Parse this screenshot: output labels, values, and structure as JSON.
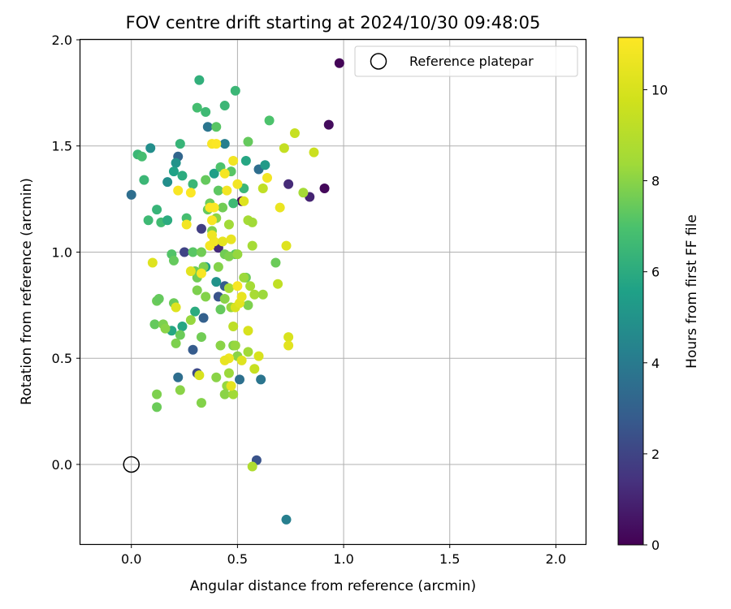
{
  "chart_data": {
    "type": "scatter",
    "title": "FOV centre drift starting at 2024/10/30 09:48:05",
    "xlabel": "Angular distance from reference (arcmin)",
    "ylabel": "Rotation from reference (arcmin)",
    "xlim": [
      -0.24,
      2.14
    ],
    "ylim": [
      -0.375,
      2.0
    ],
    "xticks": [
      0.0,
      0.5,
      1.0,
      1.5,
      2.0
    ],
    "yticks": [
      0.0,
      0.5,
      1.0,
      1.5,
      2.0
    ],
    "xtick_labels": [
      "0.0",
      "0.5",
      "1.0",
      "1.5",
      "2.0"
    ],
    "ytick_labels": [
      "0.0",
      "0.5",
      "1.0",
      "1.5",
      "2.0"
    ],
    "grid": true,
    "legend": {
      "placement": "top-right",
      "entries": [
        "Reference platepar"
      ]
    },
    "reference_point": {
      "label": "Reference platepar",
      "x": 0.0,
      "y": 0.0,
      "marker": "open-circle"
    },
    "colorbar": {
      "label": "Hours from first FF file",
      "colormap": "viridis",
      "range": [
        0,
        11.15
      ],
      "ticks": [
        0,
        2,
        4,
        6,
        8,
        10
      ],
      "tick_labels": [
        "0",
        "2",
        "4",
        "6",
        "8",
        "10"
      ]
    },
    "points": [
      {
        "x": 0.98,
        "y": 1.89,
        "c": 0.1
      },
      {
        "x": 0.93,
        "y": 1.6,
        "c": 0.3
      },
      {
        "x": 0.91,
        "y": 1.3,
        "c": 0.2
      },
      {
        "x": 0.84,
        "y": 1.26,
        "c": 1.0
      },
      {
        "x": 0.74,
        "y": 1.32,
        "c": 1.2
      },
      {
        "x": 0.6,
        "y": 1.39,
        "c": 3.5
      },
      {
        "x": 0.52,
        "y": 1.24,
        "c": 0.2
      },
      {
        "x": 0.41,
        "y": 1.02,
        "c": 1.2
      },
      {
        "x": 0.33,
        "y": 1.11,
        "c": 1.8
      },
      {
        "x": 0.25,
        "y": 1.0,
        "c": 2.0
      },
      {
        "x": 0.41,
        "y": 0.79,
        "c": 2.5
      },
      {
        "x": 0.44,
        "y": 0.84,
        "c": 2.8
      },
      {
        "x": 0.34,
        "y": 0.69,
        "c": 3.0
      },
      {
        "x": 0.29,
        "y": 0.54,
        "c": 2.8
      },
      {
        "x": 0.31,
        "y": 0.43,
        "c": 2.2
      },
      {
        "x": 0.22,
        "y": 0.41,
        "c": 3.5
      },
      {
        "x": 0.51,
        "y": 0.4,
        "c": 3.6
      },
      {
        "x": 0.61,
        "y": 0.4,
        "c": 3.8
      },
      {
        "x": 0.59,
        "y": 0.02,
        "c": 2.5
      },
      {
        "x": 0.73,
        "y": -0.26,
        "c": 4.2
      },
      {
        "x": 0.0,
        "y": 1.27,
        "c": 3.5
      },
      {
        "x": 0.09,
        "y": 1.49,
        "c": 4.8
      },
      {
        "x": 0.22,
        "y": 1.45,
        "c": 3.2
      },
      {
        "x": 0.36,
        "y": 1.59,
        "c": 3.8
      },
      {
        "x": 0.44,
        "y": 1.51,
        "c": 4.2
      },
      {
        "x": 0.21,
        "y": 1.42,
        "c": 5.0
      },
      {
        "x": 0.17,
        "y": 1.33,
        "c": 4.8
      },
      {
        "x": 0.2,
        "y": 1.38,
        "c": 5.6
      },
      {
        "x": 0.24,
        "y": 1.36,
        "c": 6.0
      },
      {
        "x": 0.39,
        "y": 1.37,
        "c": 5.5
      },
      {
        "x": 0.54,
        "y": 1.43,
        "c": 5.8
      },
      {
        "x": 0.63,
        "y": 1.41,
        "c": 5.3
      },
      {
        "x": 0.4,
        "y": 0.86,
        "c": 5.0
      },
      {
        "x": 0.35,
        "y": 0.93,
        "c": 5.5
      },
      {
        "x": 0.19,
        "y": 0.63,
        "c": 5.8
      },
      {
        "x": 0.24,
        "y": 0.65,
        "c": 5.8
      },
      {
        "x": 0.3,
        "y": 0.72,
        "c": 6.0
      },
      {
        "x": 0.03,
        "y": 1.46,
        "c": 6.5
      },
      {
        "x": 0.05,
        "y": 1.45,
        "c": 6.8
      },
      {
        "x": 0.06,
        "y": 1.34,
        "c": 6.5
      },
      {
        "x": 0.08,
        "y": 1.15,
        "c": 6.6
      },
      {
        "x": 0.12,
        "y": 1.2,
        "c": 6.4
      },
      {
        "x": 0.14,
        "y": 1.14,
        "c": 6.7
      },
      {
        "x": 0.17,
        "y": 1.15,
        "c": 6.0
      },
      {
        "x": 0.23,
        "y": 1.51,
        "c": 6.4
      },
      {
        "x": 0.29,
        "y": 1.32,
        "c": 6.5
      },
      {
        "x": 0.26,
        "y": 1.16,
        "c": 6.8
      },
      {
        "x": 0.31,
        "y": 1.68,
        "c": 6.8
      },
      {
        "x": 0.32,
        "y": 1.81,
        "c": 6.2
      },
      {
        "x": 0.35,
        "y": 1.66,
        "c": 6.6
      },
      {
        "x": 0.44,
        "y": 1.69,
        "c": 6.5
      },
      {
        "x": 0.49,
        "y": 1.76,
        "c": 6.5
      },
      {
        "x": 0.4,
        "y": 1.59,
        "c": 7.2
      },
      {
        "x": 0.42,
        "y": 1.4,
        "c": 7.0
      },
      {
        "x": 0.35,
        "y": 1.34,
        "c": 7.4
      },
      {
        "x": 0.47,
        "y": 1.38,
        "c": 7.2
      },
      {
        "x": 0.48,
        "y": 1.23,
        "c": 6.6
      },
      {
        "x": 0.55,
        "y": 1.52,
        "c": 7.4
      },
      {
        "x": 0.65,
        "y": 1.62,
        "c": 7.0
      },
      {
        "x": 0.41,
        "y": 1.29,
        "c": 7.3
      },
      {
        "x": 0.37,
        "y": 1.23,
        "c": 7.5
      },
      {
        "x": 0.36,
        "y": 1.2,
        "c": 7.4
      },
      {
        "x": 0.43,
        "y": 1.21,
        "c": 7.6
      },
      {
        "x": 0.38,
        "y": 1.1,
        "c": 7.8
      },
      {
        "x": 0.4,
        "y": 1.16,
        "c": 8.0
      },
      {
        "x": 0.53,
        "y": 1.3,
        "c": 6.5
      },
      {
        "x": 0.49,
        "y": 0.99,
        "c": 7.2
      },
      {
        "x": 0.44,
        "y": 0.99,
        "c": 7.6
      },
      {
        "x": 0.46,
        "y": 0.98,
        "c": 7.8
      },
      {
        "x": 0.19,
        "y": 0.99,
        "c": 7.1
      },
      {
        "x": 0.2,
        "y": 0.96,
        "c": 7.4
      },
      {
        "x": 0.29,
        "y": 1.0,
        "c": 7.2
      },
      {
        "x": 0.33,
        "y": 1.0,
        "c": 7.6
      },
      {
        "x": 0.34,
        "y": 0.93,
        "c": 7.8
      },
      {
        "x": 0.3,
        "y": 0.91,
        "c": 7.5
      },
      {
        "x": 0.31,
        "y": 0.88,
        "c": 7.6
      },
      {
        "x": 0.41,
        "y": 0.93,
        "c": 7.9
      },
      {
        "x": 0.54,
        "y": 0.88,
        "c": 7.5
      },
      {
        "x": 0.68,
        "y": 0.95,
        "c": 7.5
      },
      {
        "x": 0.12,
        "y": 0.77,
        "c": 7.5
      },
      {
        "x": 0.13,
        "y": 0.78,
        "c": 7.4
      },
      {
        "x": 0.2,
        "y": 0.76,
        "c": 7.5
      },
      {
        "x": 0.31,
        "y": 0.82,
        "c": 7.8
      },
      {
        "x": 0.35,
        "y": 0.79,
        "c": 7.9
      },
      {
        "x": 0.42,
        "y": 0.73,
        "c": 7.4
      },
      {
        "x": 0.44,
        "y": 0.78,
        "c": 8.0
      },
      {
        "x": 0.55,
        "y": 0.75,
        "c": 7.8
      },
      {
        "x": 0.11,
        "y": 0.66,
        "c": 7.4
      },
      {
        "x": 0.15,
        "y": 0.66,
        "c": 7.8
      },
      {
        "x": 0.16,
        "y": 0.64,
        "c": 8.0
      },
      {
        "x": 0.23,
        "y": 0.61,
        "c": 7.5
      },
      {
        "x": 0.21,
        "y": 0.57,
        "c": 7.8
      },
      {
        "x": 0.28,
        "y": 0.68,
        "c": 8.2
      },
      {
        "x": 0.33,
        "y": 0.6,
        "c": 7.6
      },
      {
        "x": 0.42,
        "y": 0.56,
        "c": 8.0
      },
      {
        "x": 0.48,
        "y": 0.56,
        "c": 7.9
      },
      {
        "x": 0.49,
        "y": 0.56,
        "c": 8.2
      },
      {
        "x": 0.55,
        "y": 0.53,
        "c": 8.4
      },
      {
        "x": 0.5,
        "y": 0.51,
        "c": 8.0
      },
      {
        "x": 0.46,
        "y": 0.43,
        "c": 8.3
      },
      {
        "x": 0.4,
        "y": 0.41,
        "c": 8.0
      },
      {
        "x": 0.45,
        "y": 0.37,
        "c": 8.2
      },
      {
        "x": 0.44,
        "y": 0.33,
        "c": 8.0
      },
      {
        "x": 0.48,
        "y": 0.33,
        "c": 8.4
      },
      {
        "x": 0.12,
        "y": 0.33,
        "c": 7.8
      },
      {
        "x": 0.12,
        "y": 0.27,
        "c": 7.5
      },
      {
        "x": 0.23,
        "y": 0.35,
        "c": 8.0
      },
      {
        "x": 0.33,
        "y": 0.29,
        "c": 7.9
      },
      {
        "x": 0.57,
        "y": -0.01,
        "c": 8.8
      },
      {
        "x": 0.46,
        "y": 1.13,
        "c": 8.4
      },
      {
        "x": 0.55,
        "y": 1.15,
        "c": 8.5
      },
      {
        "x": 0.57,
        "y": 1.14,
        "c": 8.4
      },
      {
        "x": 0.5,
        "y": 0.99,
        "c": 8.2
      },
      {
        "x": 0.57,
        "y": 1.03,
        "c": 8.5
      },
      {
        "x": 0.56,
        "y": 0.84,
        "c": 8.5
      },
      {
        "x": 0.58,
        "y": 0.8,
        "c": 8.6
      },
      {
        "x": 0.62,
        "y": 0.8,
        "c": 8.3
      },
      {
        "x": 0.47,
        "y": 0.74,
        "c": 8.2
      },
      {
        "x": 0.53,
        "y": 0.88,
        "c": 8.3
      },
      {
        "x": 0.46,
        "y": 0.83,
        "c": 8.5
      },
      {
        "x": 0.81,
        "y": 1.28,
        "c": 8.5
      },
      {
        "x": 0.77,
        "y": 1.56,
        "c": 9.5
      },
      {
        "x": 0.72,
        "y": 1.49,
        "c": 9.4
      },
      {
        "x": 0.86,
        "y": 1.47,
        "c": 9.6
      },
      {
        "x": 0.62,
        "y": 1.3,
        "c": 9.3
      },
      {
        "x": 0.69,
        "y": 0.85,
        "c": 9.3
      },
      {
        "x": 0.73,
        "y": 1.03,
        "c": 10.2
      },
      {
        "x": 0.74,
        "y": 0.6,
        "c": 10.0
      },
      {
        "x": 0.74,
        "y": 0.56,
        "c": 10.3
      },
      {
        "x": 0.48,
        "y": 0.65,
        "c": 9.2
      },
      {
        "x": 0.55,
        "y": 0.63,
        "c": 10.0
      },
      {
        "x": 0.58,
        "y": 0.45,
        "c": 9.5
      },
      {
        "x": 0.6,
        "y": 0.51,
        "c": 10.0
      },
      {
        "x": 0.52,
        "y": 0.49,
        "c": 10.2
      },
      {
        "x": 0.46,
        "y": 0.5,
        "c": 10.7
      },
      {
        "x": 0.44,
        "y": 0.49,
        "c": 10.5
      },
      {
        "x": 0.47,
        "y": 0.37,
        "c": 10.4
      },
      {
        "x": 0.32,
        "y": 0.42,
        "c": 10.0
      },
      {
        "x": 0.1,
        "y": 0.95,
        "c": 10.2
      },
      {
        "x": 0.21,
        "y": 0.74,
        "c": 10.2
      },
      {
        "x": 0.28,
        "y": 0.91,
        "c": 10.3
      },
      {
        "x": 0.49,
        "y": 0.74,
        "c": 10.0
      },
      {
        "x": 0.51,
        "y": 0.76,
        "c": 10.3
      },
      {
        "x": 0.52,
        "y": 0.79,
        "c": 10.5
      },
      {
        "x": 0.5,
        "y": 0.84,
        "c": 11.0
      },
      {
        "x": 0.33,
        "y": 0.9,
        "c": 11.0
      },
      {
        "x": 0.37,
        "y": 1.03,
        "c": 10.9
      },
      {
        "x": 0.39,
        "y": 1.05,
        "c": 10.8
      },
      {
        "x": 0.43,
        "y": 1.05,
        "c": 10.4
      },
      {
        "x": 0.47,
        "y": 1.06,
        "c": 10.5
      },
      {
        "x": 0.38,
        "y": 1.08,
        "c": 10.7
      },
      {
        "x": 0.38,
        "y": 1.15,
        "c": 11.0
      },
      {
        "x": 0.26,
        "y": 1.13,
        "c": 10.8
      },
      {
        "x": 0.37,
        "y": 1.21,
        "c": 11.0
      },
      {
        "x": 0.39,
        "y": 1.21,
        "c": 11.1
      },
      {
        "x": 0.53,
        "y": 1.24,
        "c": 10.2
      },
      {
        "x": 0.45,
        "y": 1.29,
        "c": 10.8
      },
      {
        "x": 0.5,
        "y": 1.32,
        "c": 10.8
      },
      {
        "x": 0.22,
        "y": 1.29,
        "c": 11.0
      },
      {
        "x": 0.28,
        "y": 1.28,
        "c": 11.1
      },
      {
        "x": 0.44,
        "y": 1.37,
        "c": 10.9
      },
      {
        "x": 0.48,
        "y": 1.43,
        "c": 10.8
      },
      {
        "x": 0.38,
        "y": 1.51,
        "c": 11.0
      },
      {
        "x": 0.4,
        "y": 1.51,
        "c": 11.1
      },
      {
        "x": 0.64,
        "y": 1.35,
        "c": 10.8
      },
      {
        "x": 0.7,
        "y": 1.21,
        "c": 10.6
      }
    ]
  }
}
